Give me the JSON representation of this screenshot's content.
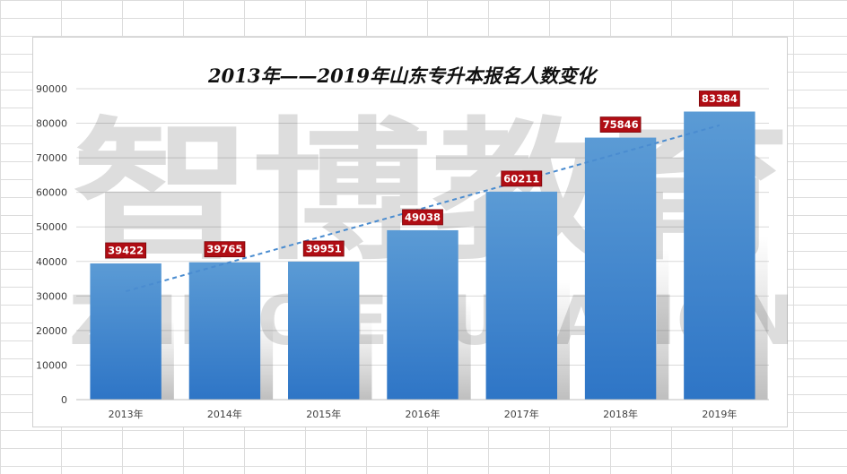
{
  "watermark": {
    "cn": "智博教育",
    "en": "ZHIBO EDUCATION"
  },
  "chart_data": {
    "type": "bar",
    "title": "2013年——2019年山东专升本报名人数变化",
    "categories": [
      "2013年",
      "2014年",
      "2015年",
      "2016年",
      "2017年",
      "2018年",
      "2019年"
    ],
    "values": [
      39422,
      39765,
      39951,
      49038,
      60211,
      75846,
      83384
    ],
    "ylim": [
      0,
      90000
    ],
    "yticks": [
      0,
      10000,
      20000,
      30000,
      40000,
      50000,
      60000,
      70000,
      80000,
      90000
    ],
    "grid": true,
    "legend": "none",
    "trendline": "linear",
    "colors": {
      "bar_top": "#5b9bd5",
      "bar_bottom": "#2e75c6",
      "label_bg": "#b00d14",
      "trendline": "#4a8cd0"
    }
  }
}
